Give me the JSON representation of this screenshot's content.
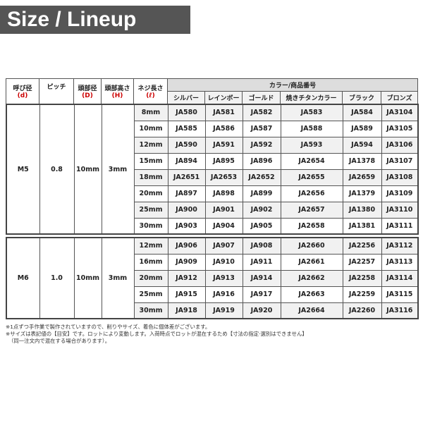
{
  "title": "Size / Lineup",
  "header": {
    "d": "呼び径",
    "d_sym": "(d)",
    "pitch": "ピッチ",
    "D": "頭部径",
    "D_sym": "(D)",
    "H": "頭部高さ",
    "H_sym": "(H)",
    "L": "ネジ長さ",
    "L_sym": "(ℓ)",
    "color_group": "カラー/商品番号",
    "colors": [
      "シルバー",
      "レインボー",
      "ゴールド",
      "焼きチタンカラー",
      "ブラック",
      "ブロンズ"
    ]
  },
  "groups": [
    {
      "size": "M5",
      "pitch": "0.8",
      "head_d": "10mm",
      "head_h": "3mm",
      "rows": [
        [
          "8mm",
          "JA580",
          "JA581",
          "JA582",
          "JA583",
          "JA584",
          "JA3104"
        ],
        [
          "10mm",
          "JA585",
          "JA586",
          "JA587",
          "JA588",
          "JA589",
          "JA3105"
        ],
        [
          "12mm",
          "JA590",
          "JA591",
          "JA592",
          "JA593",
          "JA594",
          "JA3106"
        ],
        [
          "15mm",
          "JA894",
          "JA895",
          "JA896",
          "JA2654",
          "JA1378",
          "JA3107"
        ],
        [
          "18mm",
          "JA2651",
          "JA2653",
          "JA2652",
          "JA2655",
          "JA2659",
          "JA3108"
        ],
        [
          "20mm",
          "JA897",
          "JA898",
          "JA899",
          "JA2656",
          "JA1379",
          "JA3109"
        ],
        [
          "25mm",
          "JA900",
          "JA901",
          "JA902",
          "JA2657",
          "JA1380",
          "JA3110"
        ],
        [
          "30mm",
          "JA903",
          "JA904",
          "JA905",
          "JA2658",
          "JA1381",
          "JA3111"
        ]
      ]
    },
    {
      "size": "M6",
      "pitch": "1.0",
      "head_d": "10mm",
      "head_h": "3mm",
      "rows": [
        [
          "12mm",
          "JA906",
          "JA907",
          "JA908",
          "JA2660",
          "JA2256",
          "JA3112"
        ],
        [
          "16mm",
          "JA909",
          "JA910",
          "JA911",
          "JA2661",
          "JA2257",
          "JA3113"
        ],
        [
          "20mm",
          "JA912",
          "JA913",
          "JA914",
          "JA2662",
          "JA2258",
          "JA3114"
        ],
        [
          "25mm",
          "JA915",
          "JA916",
          "JA917",
          "JA2663",
          "JA2259",
          "JA3115"
        ],
        [
          "30mm",
          "JA918",
          "JA919",
          "JA920",
          "JA2664",
          "JA2260",
          "JA3116"
        ]
      ]
    }
  ],
  "notes": [
    "※1点ずつ手作業で製作されていますので、削りやサイズ、着色に個体差がございます。",
    "※サイズは表記値の【目安】です。ロットにより変動します。入荷時点でロットが混在するため【寸法の指定·選別はできません】",
    "（同一注文内で混在する場合があります）。"
  ]
}
